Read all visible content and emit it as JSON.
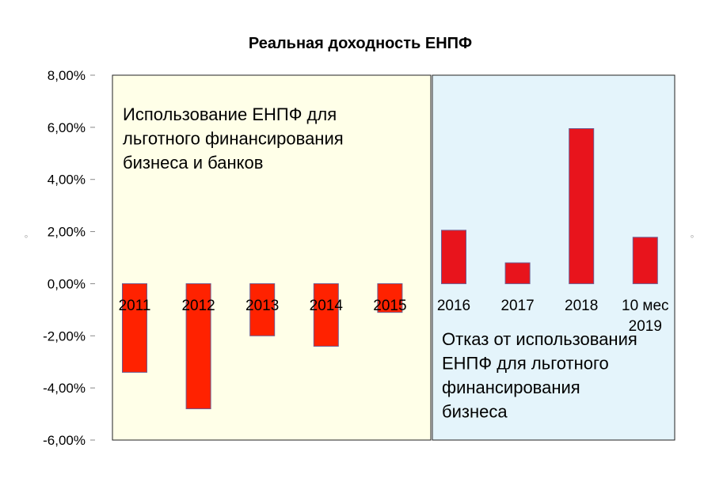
{
  "chart_data": {
    "type": "bar",
    "title": "Реальная доходность ЕНПФ",
    "xlabel": "",
    "ylabel": "",
    "ylim": [
      -6,
      8
    ],
    "yticks": [
      "8,00%",
      "6,00%",
      "4,00%",
      "2,00%",
      "0,00%",
      "-2,00%",
      "-4,00%",
      "-6,00%"
    ],
    "ytick_values": [
      8,
      6,
      4,
      2,
      0,
      -2,
      -4,
      -6
    ],
    "grid": false,
    "categories": [
      "2011",
      "2012",
      "2013",
      "2014",
      "2015",
      "2016",
      "2017",
      "2018",
      "10 мес 2019"
    ],
    "category_lines": [
      [
        "2011"
      ],
      [
        "2012"
      ],
      [
        "2013"
      ],
      [
        "2014"
      ],
      [
        "2015"
      ],
      [
        "2016"
      ],
      [
        "2017"
      ],
      [
        "2018"
      ],
      [
        "10 мес",
        "2019"
      ]
    ],
    "values": [
      -3.4,
      -4.8,
      -2.0,
      -2.4,
      -1.1,
      2.05,
      0.8,
      5.95,
      1.78
    ],
    "bar_color": "#ff2200",
    "bar_color_alt": "#e8141c",
    "bar_stroke": "#6d5a8e",
    "regions": [
      {
        "name": "period-1",
        "from_category": 0,
        "to_category": 4,
        "fill": "#ffffe8",
        "label_lines": [
          "Использование ЕНПФ для",
          "льготного финансирования",
          "бизнеса и банков"
        ]
      },
      {
        "name": "period-2",
        "from_category": 5,
        "to_category": 8,
        "fill": "#e4f4fb",
        "label_lines": [
          "Отказ от использования",
          "ЕНПФ для льготного",
          "финансирования",
          "бизнеса"
        ]
      }
    ]
  },
  "decor": {
    "left_mark": "◦",
    "right_mark": "◦"
  }
}
